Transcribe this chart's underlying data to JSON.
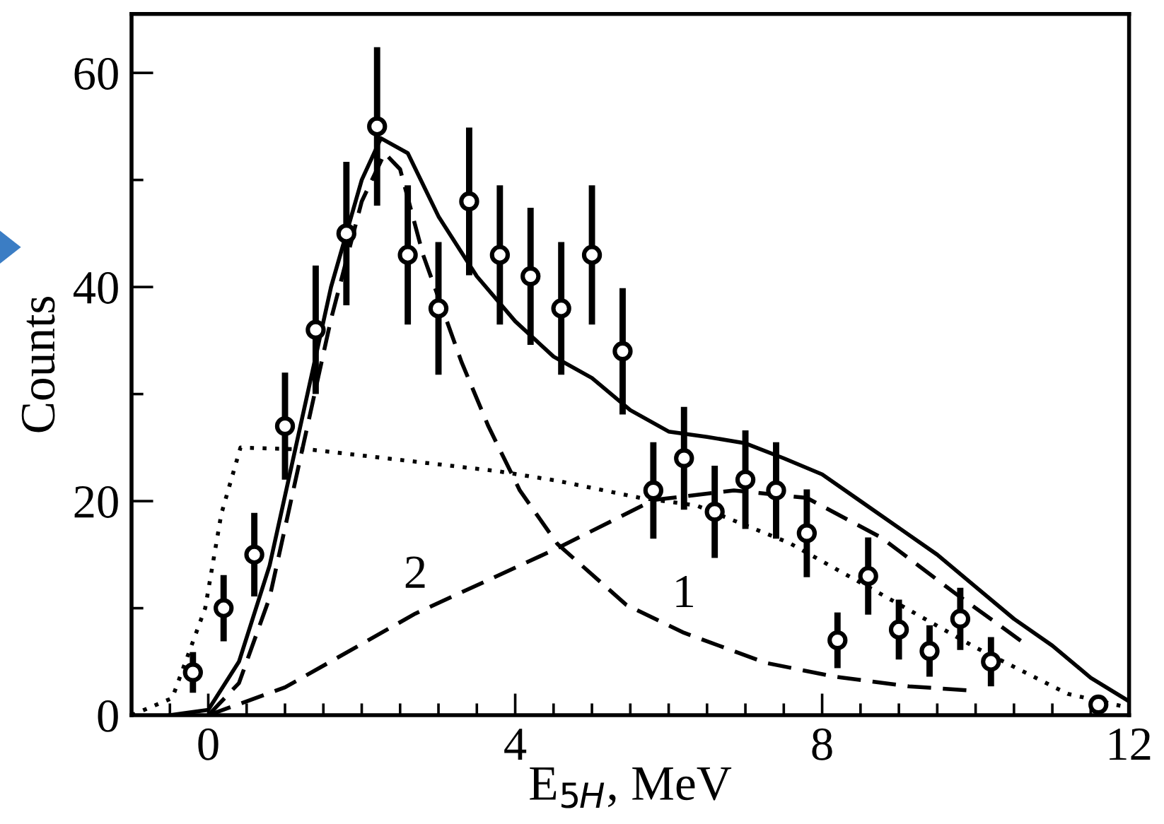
{
  "chart_data": {
    "type": "scatter",
    "xlabel": "E$_{5H}$, MeV",
    "ylabel": "Counts",
    "xlim": [
      -1,
      12
    ],
    "ylim": [
      0,
      65.5
    ],
    "xticks": [
      {
        "value": -0.5,
        "label": null
      },
      0,
      {
        "value": 0.5,
        "label": null
      },
      {
        "value": 1,
        "label": null
      },
      {
        "value": 1.5,
        "label": null
      },
      {
        "value": 2,
        "label": null
      },
      {
        "value": 2.5,
        "label": null
      },
      {
        "value": 3,
        "label": null
      },
      {
        "value": 3.5,
        "label": null
      },
      4,
      {
        "value": 4.5,
        "label": null
      },
      {
        "value": 5,
        "label": null
      },
      {
        "value": 5.5,
        "label": null
      },
      {
        "value": 6,
        "label": null
      },
      {
        "value": 6.5,
        "label": null
      },
      {
        "value": 7,
        "label": null
      },
      {
        "value": 7.5,
        "label": null
      },
      8,
      {
        "value": 8.5,
        "label": null
      },
      {
        "value": 9,
        "label": null
      },
      {
        "value": 9.5,
        "label": null
      },
      {
        "value": 10,
        "label": null
      },
      {
        "value": 10.5,
        "label": null
      },
      {
        "value": 11,
        "label": null
      },
      {
        "value": 11.5,
        "label": null
      },
      12
    ],
    "yticks": [
      0,
      {
        "value": 10,
        "label": null
      },
      20,
      {
        "value": 30,
        "label": null
      },
      40,
      {
        "value": 50,
        "label": null
      },
      60
    ],
    "grid": false,
    "legend": false,
    "annotations": [
      {
        "text": "1",
        "x": 6.2,
        "y": 7.7
      },
      {
        "text": "2",
        "x": 2.7,
        "y": 9.5
      }
    ],
    "series": [
      {
        "color": "#000000",
        "marker": "circle",
        "x": [
          -0.2,
          0.2,
          0.6,
          1.0,
          1.4,
          1.8,
          2.2,
          2.6,
          3.0,
          3.4,
          3.8,
          4.2,
          4.6,
          5.0,
          5.4,
          5.8,
          6.2,
          6.6,
          7.0,
          7.4,
          7.8,
          8.2,
          8.6,
          9.0,
          9.4,
          9.8,
          10.2,
          11.6
        ],
        "values": [
          4,
          10,
          15,
          27,
          36,
          45,
          55,
          43,
          38,
          48,
          43,
          41,
          38,
          43,
          34,
          21,
          24,
          19,
          22,
          21,
          17,
          7,
          13,
          8,
          6,
          9,
          5,
          1
        ],
        "errors": [
          1.9,
          3.1,
          3.9,
          5,
          6,
          6.7,
          7.4,
          6.5,
          6.2,
          6.9,
          6.5,
          6.4,
          6.2,
          6.5,
          5.9,
          4.5,
          4.8,
          4.3,
          4.6,
          4.5,
          4.1,
          2.6,
          3.6,
          2.8,
          2.4,
          2.9,
          2.3,
          null
        ]
      },
      {
        "type": "line",
        "color": "#000000",
        "line_style": "solid",
        "x": [
          -0.5,
          0,
          0.4,
          0.8,
          1.2,
          1.6,
          2.0,
          2.25,
          2.6,
          3.0,
          3.5,
          4,
          4.5,
          5,
          5.5,
          6,
          6.5,
          7,
          7.5,
          8,
          8.5,
          9,
          9.5,
          10,
          10.5,
          11,
          11.5,
          12
        ],
        "values": [
          0,
          0.5,
          5,
          14,
          27,
          40,
          50,
          53.9,
          52.5,
          46.6,
          41,
          36.8,
          33.5,
          31.5,
          28.5,
          26.5,
          26,
          25.4,
          24,
          22.5,
          20,
          17.5,
          15,
          12,
          9,
          6.5,
          3.5,
          1.3
        ]
      },
      {
        "type": "line",
        "color": "#000000",
        "line_style": "dashed",
        "x": [
          0,
          0.4,
          0.8,
          1.2,
          1.6,
          2.0,
          2.3,
          2.5,
          2.8,
          3.3,
          3.65,
          4.06,
          4.55,
          5.45,
          6.2,
          7.26,
          8.17,
          9.13,
          9.95
        ],
        "values": [
          0,
          3,
          11,
          24,
          37,
          48,
          52.5,
          51,
          43,
          33,
          27,
          21,
          16,
          10.3,
          7.7,
          4.9,
          3.6,
          2.7,
          2.3
        ]
      },
      {
        "type": "line",
        "color": "#000000",
        "line_style": "dashed",
        "x": [
          0,
          1,
          2.7,
          4.55,
          5.8,
          6.85,
          7.8,
          8.77,
          9.75,
          10.6
        ],
        "values": [
          0,
          2.6,
          9.5,
          15.6,
          20.1,
          21,
          20.3,
          16.6,
          11.3,
          6.9
        ]
      },
      {
        "type": "line",
        "color": "#000000",
        "line_style": "dotted",
        "x": [
          -1,
          -0.47,
          -0.04,
          0.17,
          0.42,
          1.35,
          3.77,
          4.55,
          5.63,
          6.36,
          7.57,
          8.77,
          9.98,
          11.2,
          12
        ],
        "values": [
          0,
          1.6,
          10,
          18.8,
          25,
          24.8,
          22.8,
          21.9,
          20.3,
          19.6,
          16.1,
          11.3,
          6.4,
          2,
          0.7
        ]
      }
    ]
  }
}
